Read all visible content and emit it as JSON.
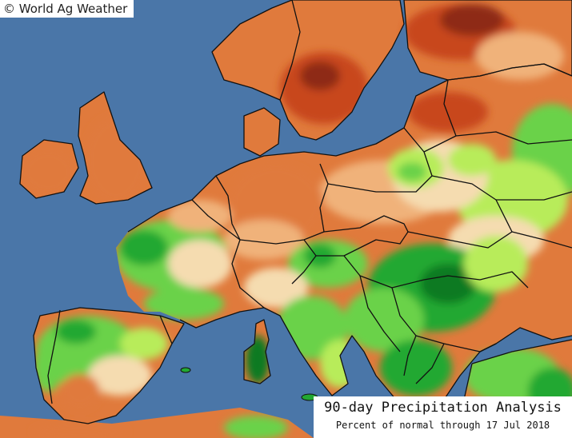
{
  "credit": "© World Ag Weather",
  "title": "90-day Precipitation Analysis",
  "subtitle": "Percent of normal through 17 Jul 2018",
  "colors": {
    "sea": "#4a76a8",
    "dry_extreme": "#8e2a18",
    "dry_strong": "#c8461e",
    "dry": "#e07a3c",
    "dry_slight": "#f0b27a",
    "near_normal": "#f5dcb0",
    "wet_slight": "#b8ec5a",
    "wet": "#6ad24a",
    "wet_strong": "#22a832",
    "wet_extreme": "#0d7a22",
    "border": "#111111"
  }
}
